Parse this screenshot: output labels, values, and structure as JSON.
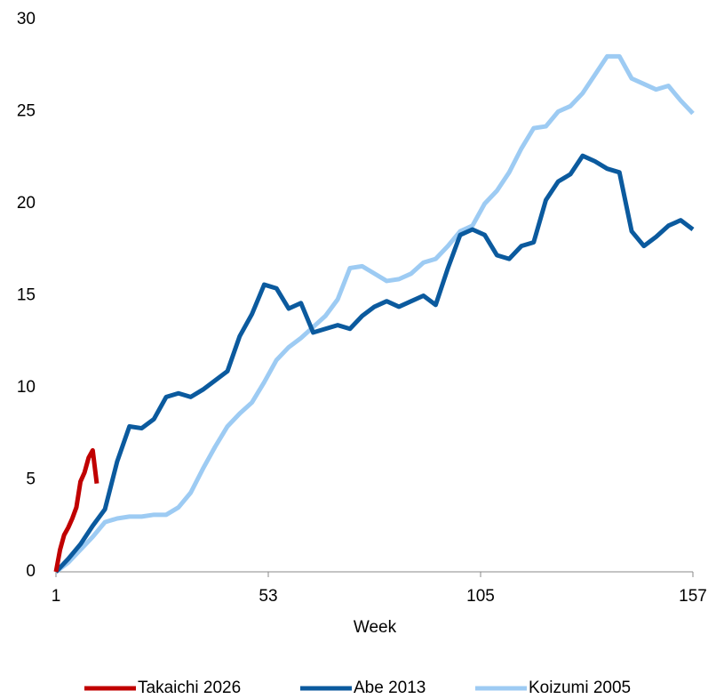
{
  "chart_data": {
    "type": "line",
    "xlabel": "Week",
    "xlim": [
      1,
      157
    ],
    "xticks": [
      1,
      53,
      105,
      157
    ],
    "ylim": [
      0,
      30
    ],
    "yticks": [
      0,
      5,
      10,
      15,
      20,
      25,
      30
    ],
    "legend": "bottom",
    "series": [
      {
        "name": "Takaichi 2026",
        "color": "#c00000",
        "x": [
          1,
          2,
          3,
          4,
          5,
          6,
          7,
          8,
          9,
          10,
          11
        ],
        "values": [
          0,
          1.2,
          2.0,
          2.4,
          2.9,
          3.5,
          4.9,
          5.4,
          6.2,
          6.6,
          4.8
        ]
      },
      {
        "name": "Abe 2013",
        "color": "#0b5a9e",
        "x": [
          1,
          4,
          7,
          10,
          13,
          16,
          19,
          22,
          25,
          28,
          31,
          34,
          37,
          40,
          43,
          46,
          49,
          52,
          55,
          58,
          61,
          64,
          67,
          70,
          73,
          76,
          79,
          82,
          85,
          88,
          91,
          94,
          97,
          100,
          103,
          106,
          109,
          112,
          115,
          118,
          121,
          124,
          127,
          130,
          133,
          136,
          139,
          142,
          145,
          148,
          151,
          154,
          157
        ],
        "values": [
          0,
          0.7,
          1.5,
          2.5,
          3.4,
          6.0,
          7.9,
          7.8,
          8.3,
          9.5,
          9.7,
          9.5,
          9.9,
          10.4,
          10.9,
          12.8,
          14.0,
          15.6,
          15.4,
          14.3,
          14.6,
          13.0,
          13.2,
          13.4,
          13.2,
          13.9,
          14.4,
          14.7,
          14.4,
          14.7,
          15.0,
          14.5,
          16.5,
          18.3,
          18.6,
          18.3,
          17.2,
          17.0,
          17.7,
          17.9,
          20.2,
          21.2,
          21.6,
          22.6,
          22.3,
          21.9,
          21.7,
          18.5,
          17.7,
          18.2,
          18.8,
          19.1,
          18.6
        ]
      },
      {
        "name": "Koizumi 2005",
        "color": "#9dcbf3",
        "x": [
          1,
          4,
          7,
          10,
          13,
          16,
          19,
          22,
          25,
          28,
          31,
          34,
          37,
          40,
          43,
          46,
          49,
          52,
          55,
          58,
          61,
          64,
          67,
          70,
          73,
          76,
          79,
          82,
          85,
          88,
          91,
          94,
          97,
          100,
          103,
          106,
          109,
          112,
          115,
          118,
          121,
          124,
          127,
          130,
          133,
          136,
          139,
          142,
          145,
          148,
          151,
          154,
          157
        ],
        "values": [
          0,
          0.5,
          1.2,
          1.9,
          2.7,
          2.9,
          3.0,
          3.0,
          3.1,
          3.1,
          3.5,
          4.3,
          5.6,
          6.8,
          7.9,
          8.6,
          9.2,
          10.3,
          11.5,
          12.2,
          12.7,
          13.3,
          13.9,
          14.8,
          16.5,
          16.6,
          16.2,
          15.8,
          15.9,
          16.2,
          16.8,
          17.0,
          17.7,
          18.5,
          18.8,
          20.0,
          20.7,
          21.7,
          23.0,
          24.1,
          24.2,
          25.0,
          25.3,
          26.0,
          27.0,
          28.0,
          28.0,
          26.8,
          26.5,
          26.2,
          26.4,
          25.6,
          24.9
        ]
      }
    ]
  }
}
